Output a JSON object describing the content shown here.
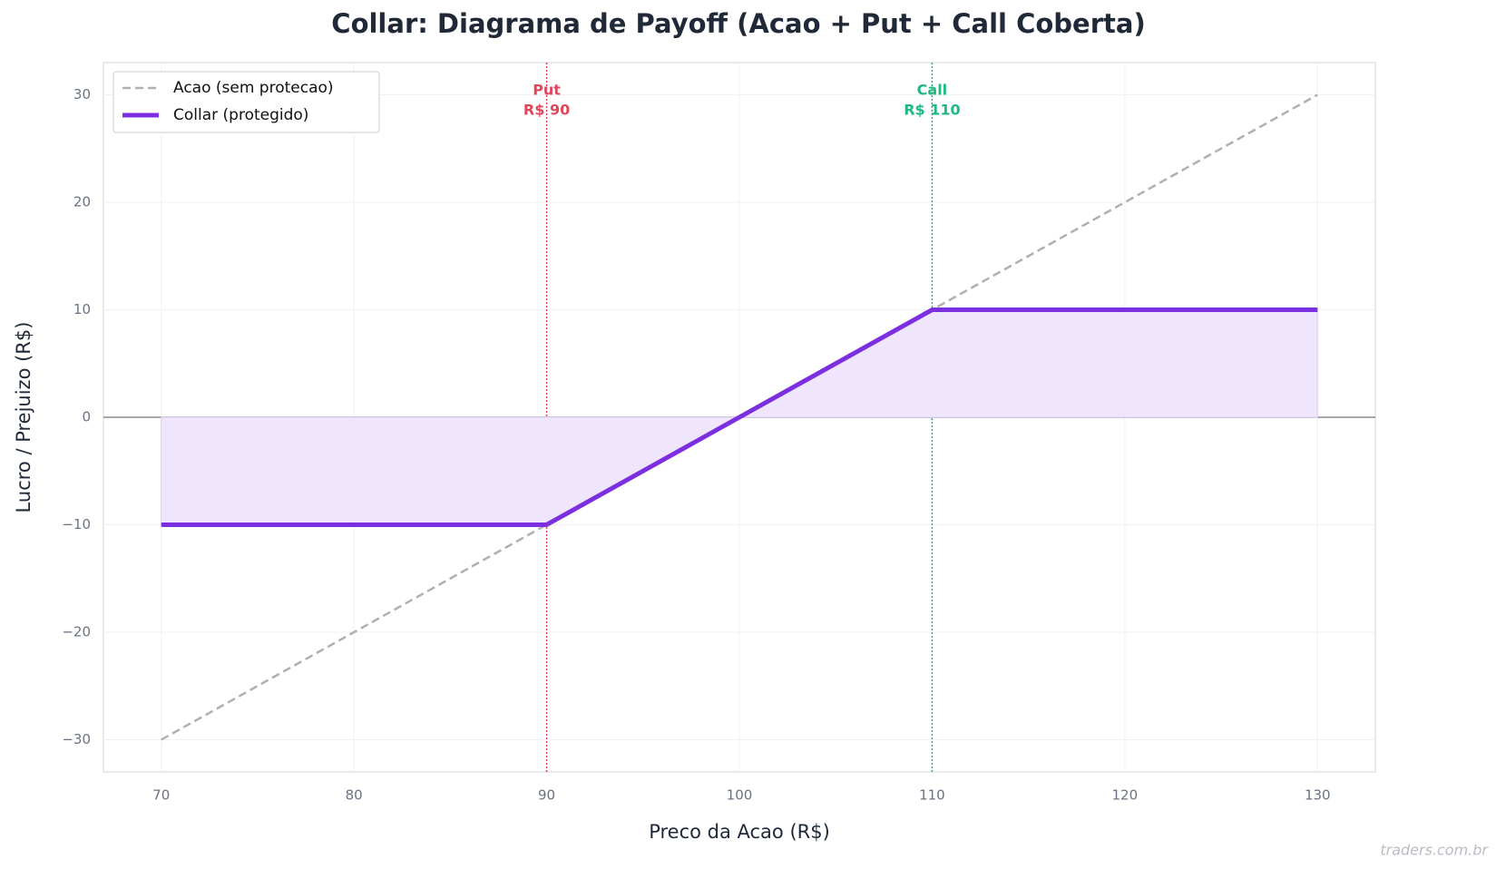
{
  "chart_data": {
    "type": "line",
    "title": "Collar: Diagrama de Payoff (Acao + Put + Call Coberta)",
    "xlabel": "Preco da Acao (R$)",
    "ylabel": "Lucro / Prejuizo (R$)",
    "xlim": [
      67,
      133
    ],
    "xticks": [
      70,
      80,
      90,
      100,
      110,
      120,
      130
    ],
    "ylim": [
      -33,
      33
    ],
    "yticks": [
      -30,
      -20,
      -10,
      0,
      10,
      20,
      30
    ],
    "yticks_labels_minus": true,
    "grid": true,
    "legend": "upper left",
    "hline": 0,
    "series": [
      {
        "name": "Acao (sem protecao)",
        "color": "#b0b0b4",
        "style": "dashed",
        "x": [
          70,
          130
        ],
        "values": [
          -30,
          30
        ]
      },
      {
        "name": "Collar (protegido)",
        "color": "#7b2fe0",
        "style": "solid",
        "fill": "#efe6fd",
        "x": [
          70,
          90,
          110,
          130
        ],
        "values": [
          -10,
          -10,
          10,
          10
        ]
      }
    ],
    "vlines": [
      {
        "x": 90,
        "color": "#e0475a",
        "label": [
          "Put",
          "R$ 90"
        ]
      },
      {
        "x": 110,
        "color": "#1fb981",
        "label": [
          "Call",
          "R$ 110"
        ]
      }
    ],
    "watermark": "traders.com.br"
  }
}
